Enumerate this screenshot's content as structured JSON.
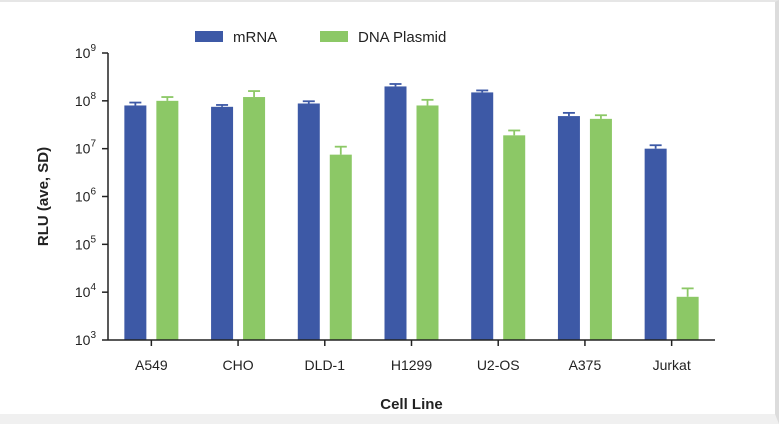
{
  "chart_data": {
    "type": "bar",
    "title": "",
    "xlabel": "Cell Line",
    "ylabel": "RLU (ave, SD)",
    "yscale": "log",
    "ylim": [
      1000,
      1000000000
    ],
    "yticks": [
      {
        "value": 1000,
        "base": "10",
        "exp": "3"
      },
      {
        "value": 10000,
        "base": "10",
        "exp": "4"
      },
      {
        "value": 100000,
        "base": "10",
        "exp": "5"
      },
      {
        "value": 1000000,
        "base": "10",
        "exp": "6"
      },
      {
        "value": 10000000,
        "base": "10",
        "exp": "7"
      },
      {
        "value": 100000000,
        "base": "10",
        "exp": "8"
      },
      {
        "value": 1000000000,
        "base": "10",
        "exp": "9"
      }
    ],
    "categories": [
      "A549",
      "CHO",
      "DLD-1",
      "H1299",
      "U2-OS",
      "A375",
      "Jurkat"
    ],
    "legend_position": "top-center",
    "series": [
      {
        "name": "mRNA",
        "color": "#3d59a6",
        "values": [
          80000000,
          75000000,
          88000000,
          200000000,
          150000000,
          48000000,
          10000000
        ],
        "errors": [
          12000000,
          7000000,
          10000000,
          25000000,
          15000000,
          8000000,
          1800000
        ]
      },
      {
        "name": "DNA Plasmid",
        "color": "#8cc866",
        "values": [
          100000000,
          120000000,
          7500000,
          80000000,
          19000000,
          42000000,
          8000
        ],
        "errors": [
          20000000,
          40000000,
          3500000,
          25000000,
          5000000,
          8000000,
          4000
        ]
      }
    ]
  }
}
